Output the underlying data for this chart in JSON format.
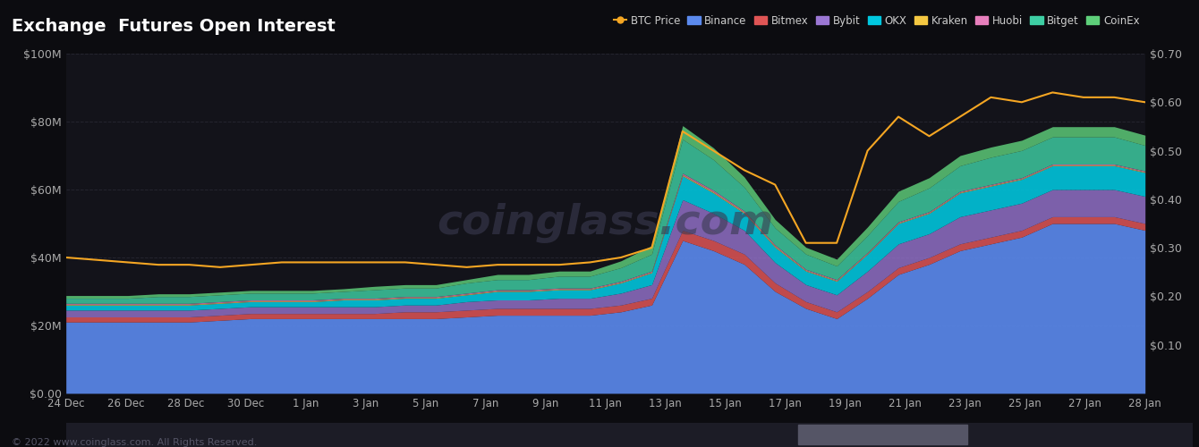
{
  "title": "Exchange  Futures Open Interest",
  "bg_color": "#0c0c10",
  "plot_bg_color": "#13131a",
  "grid_color": "#2a2a35",
  "text_color": "#aaaaaa",
  "watermark": "coinglass.com",
  "footer": "© 2022 www.coinglass.com. All Rights Reserved.",
  "left_ylim": [
    0,
    100
  ],
  "right_ylim": [
    0.0,
    0.7
  ],
  "xtick_labels": [
    "24 Dec",
    "26 Dec",
    "28 Dec",
    "30 Dec",
    "1 Jan",
    "3 Jan",
    "5 Jan",
    "7 Jan",
    "9 Jan",
    "11 Jan",
    "13 Jan",
    "15 Jan",
    "17 Jan",
    "19 Jan",
    "21 Jan",
    "23 Jan",
    "25 Jan",
    "27 Jan",
    "28 Jan"
  ],
  "legend_items": [
    {
      "label": "BTC Price",
      "color": "#f5a623"
    },
    {
      "label": "Binance",
      "color": "#5b8aee"
    },
    {
      "label": "Bitmex",
      "color": "#e05555"
    },
    {
      "label": "Bybit",
      "color": "#9b77d4"
    },
    {
      "label": "OKX",
      "color": "#00c8e0"
    },
    {
      "label": "Kraken",
      "color": "#f5c842"
    },
    {
      "label": "Huobi",
      "color": "#e87fbd"
    },
    {
      "label": "Bitget",
      "color": "#3ecfa4"
    },
    {
      "label": "CoinEx",
      "color": "#5ecf7a"
    }
  ],
  "n": 36,
  "binance": [
    21,
    21,
    21,
    21,
    21,
    21.5,
    22,
    22,
    22,
    22,
    22,
    22,
    22,
    22.5,
    23,
    23,
    23,
    23,
    24,
    26,
    45,
    42,
    38,
    30,
    25,
    22,
    28,
    35,
    38,
    42,
    44,
    46,
    50,
    50,
    50,
    48
  ],
  "bitmex": [
    1.5,
    1.5,
    1.5,
    1.5,
    1.5,
    1.5,
    1.5,
    1.5,
    1.5,
    1.5,
    1.5,
    2,
    2,
    2,
    2,
    2,
    2,
    2,
    2,
    2,
    3,
    3,
    3,
    2.5,
    2,
    2,
    2,
    2,
    2,
    2,
    2,
    2,
    2,
    2,
    2,
    2
  ],
  "bybit": [
    2,
    2,
    2,
    2,
    2,
    2,
    2,
    2,
    2,
    2,
    2,
    2,
    2,
    2.5,
    2.5,
    2.5,
    3,
    3,
    3.5,
    4,
    9,
    8,
    7,
    6,
    5,
    5,
    6,
    7,
    7,
    8,
    8,
    8,
    8,
    8,
    8,
    8
  ],
  "okx": [
    1.5,
    1.5,
    1.5,
    1.5,
    1.5,
    1.5,
    1.5,
    1.5,
    1.5,
    2,
    2,
    2,
    2,
    2,
    2.5,
    2.5,
    2.5,
    2.5,
    3,
    3.5,
    7,
    6,
    5,
    4.5,
    4,
    4,
    5,
    6,
    6,
    7,
    7,
    7,
    7,
    7,
    7,
    7
  ],
  "kraken": [
    0.2,
    0.2,
    0.2,
    0.2,
    0.2,
    0.2,
    0.2,
    0.2,
    0.2,
    0.2,
    0.2,
    0.2,
    0.2,
    0.2,
    0.2,
    0.2,
    0.2,
    0.2,
    0.2,
    0.2,
    0.3,
    0.3,
    0.3,
    0.3,
    0.2,
    0.2,
    0.2,
    0.2,
    0.2,
    0.2,
    0.2,
    0.2,
    0.2,
    0.2,
    0.2,
    0.2
  ],
  "huobi": [
    0.3,
    0.3,
    0.3,
    0.3,
    0.3,
    0.3,
    0.3,
    0.3,
    0.3,
    0.3,
    0.3,
    0.3,
    0.3,
    0.3,
    0.3,
    0.3,
    0.3,
    0.3,
    0.3,
    0.3,
    0.5,
    0.5,
    0.4,
    0.4,
    0.3,
    0.3,
    0.3,
    0.3,
    0.3,
    0.3,
    0.3,
    0.3,
    0.3,
    0.3,
    0.3,
    0.3
  ],
  "bitget": [
    1.5,
    1.5,
    1.5,
    2,
    2,
    2,
    2,
    2,
    2,
    2,
    2.5,
    2.5,
    2.5,
    3,
    3,
    3,
    3.5,
    3.5,
    4,
    5,
    10,
    9,
    7,
    5,
    4.5,
    4,
    5,
    6,
    7,
    7.5,
    8,
    8,
    8,
    8,
    8,
    7.5
  ],
  "coinex": [
    0.8,
    0.8,
    0.8,
    0.8,
    0.8,
    0.8,
    0.8,
    0.8,
    0.8,
    0.8,
    1,
    1,
    1,
    1,
    1.5,
    1.5,
    1.5,
    1.5,
    2,
    2.5,
    4,
    3.5,
    3,
    2.5,
    2,
    2,
    2.5,
    3,
    3,
    3,
    3,
    3,
    3,
    3,
    3,
    3
  ],
  "btc_price": [
    0.28,
    0.275,
    0.27,
    0.265,
    0.265,
    0.26,
    0.265,
    0.27,
    0.27,
    0.27,
    0.27,
    0.27,
    0.265,
    0.26,
    0.265,
    0.265,
    0.265,
    0.27,
    0.28,
    0.3,
    0.54,
    0.5,
    0.46,
    0.43,
    0.31,
    0.31,
    0.5,
    0.57,
    0.53,
    0.57,
    0.61,
    0.6,
    0.62,
    0.61,
    0.61,
    0.6
  ]
}
